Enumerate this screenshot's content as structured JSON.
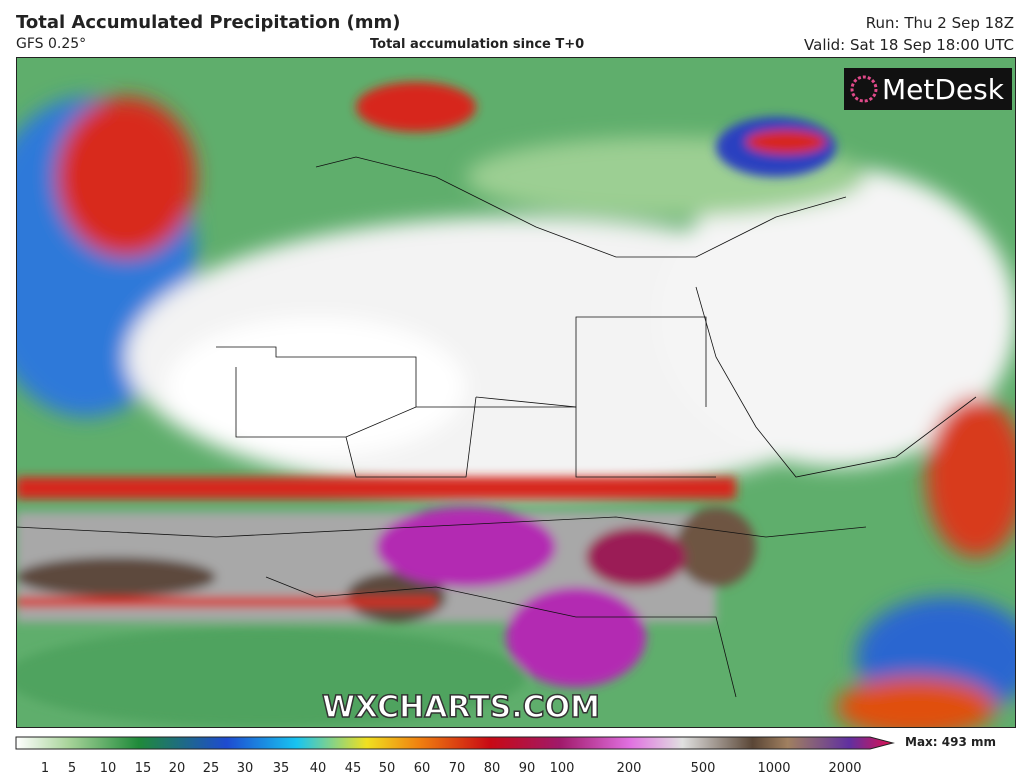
{
  "header": {
    "title": "Total Accumulated Precipitation (mm)",
    "model": "GFS 0.25°",
    "subtitle": "Total accumulation since T+0",
    "run": "Run: Thu 2 Sep 18Z",
    "valid": "Valid: Sat 18 Sep 18:00 UTC"
  },
  "map": {
    "logo": "MetDesk",
    "watermark": "WXCHARTS.COM"
  },
  "legend": {
    "ticks": [
      1,
      5,
      10,
      15,
      20,
      25,
      30,
      35,
      40,
      45,
      50,
      60,
      70,
      80,
      90,
      100,
      200,
      500,
      1000,
      2000
    ],
    "max_label": "Max: 493 mm"
  }
}
